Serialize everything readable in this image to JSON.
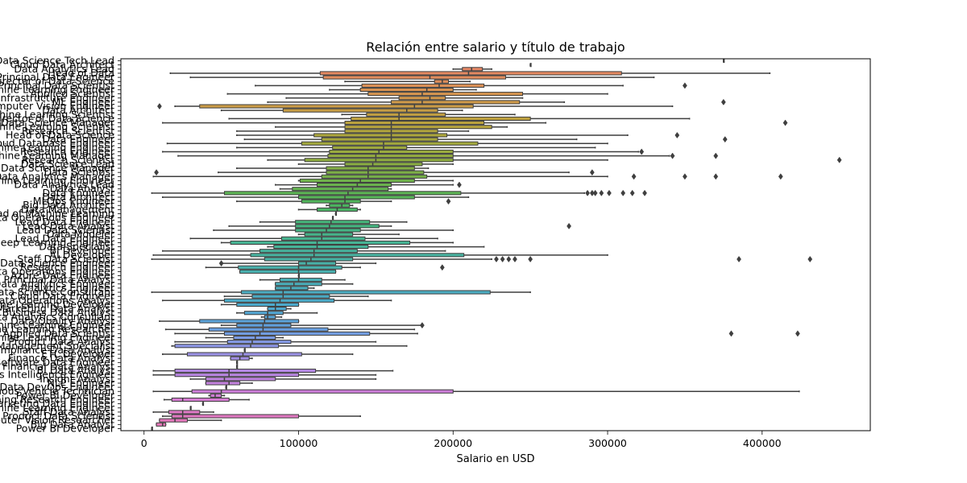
{
  "chart_data": {
    "type": "box",
    "title": "Relación entre salario y título de trabajo",
    "xlabel": "Salario en USD",
    "ylabel": "",
    "xlim": [
      -15000,
      470000
    ],
    "xticks": [
      0,
      100000,
      200000,
      300000,
      400000
    ],
    "xtick_labels": [
      "0",
      "100000",
      "200000",
      "300000",
      "400000"
    ],
    "grid": false,
    "categories": [
      {
        "name": "Data Science Tech Lead",
        "min": 375000,
        "q1": 375000,
        "med": 375000,
        "q3": 375000,
        "max": 375000,
        "out": []
      },
      {
        "name": "Cloud Data Architect",
        "min": 250000,
        "q1": 250000,
        "med": 250000,
        "q3": 250000,
        "max": 250000,
        "out": []
      },
      {
        "name": "Data Analytics Lead",
        "min": 200000,
        "q1": 206000,
        "med": 212000,
        "q3": 219000,
        "max": 225000,
        "out": []
      },
      {
        "name": "Head of Data",
        "min": 17000,
        "q1": 114000,
        "med": 210000,
        "q3": 309000,
        "max": 405000,
        "out": []
      },
      {
        "name": "Principal Data Engineer",
        "min": 30000,
        "q1": 116000,
        "med": 185000,
        "q3": 234000,
        "max": 330000,
        "out": []
      },
      {
        "name": "Director of Data Science",
        "min": 130000,
        "q1": 188000,
        "med": 193000,
        "q3": 197000,
        "max": 211000,
        "out": []
      },
      {
        "name": "Principal Data Scientist",
        "min": 72000,
        "q1": 141000,
        "med": 191000,
        "q3": 220000,
        "max": 310000,
        "out": [
          350000
        ]
      },
      {
        "name": "Machine Learning Engineer",
        "min": 120000,
        "q1": 140000,
        "med": 183000,
        "q3": 200000,
        "max": 215000,
        "out": []
      },
      {
        "name": "Applied Scientist",
        "min": 54000,
        "q1": 145000,
        "med": 180000,
        "q3": 245000,
        "max": 300000,
        "out": []
      },
      {
        "name": "Data Infrastructure Engineer",
        "min": 92000,
        "q1": 165000,
        "med": 185000,
        "q3": 195000,
        "max": 245000,
        "out": []
      },
      {
        "name": "ML Engineer",
        "min": 80000,
        "q1": 160000,
        "med": 180000,
        "q3": 243000,
        "max": 272000,
        "out": [
          375000
        ]
      },
      {
        "name": "Computer Vision Engineer",
        "min": 20000,
        "q1": 36000,
        "med": 175000,
        "q3": 213000,
        "max": 342000,
        "out": [
          10000
        ]
      },
      {
        "name": "Data Architect",
        "min": 50000,
        "q1": 90000,
        "med": 170000,
        "q3": 190000,
        "max": 206000,
        "out": []
      },
      {
        "name": "Machine Learning Scientist",
        "min": 128000,
        "q1": 144000,
        "med": 165000,
        "q3": 195000,
        "max": 240000,
        "out": []
      },
      {
        "name": "Director of Data Science",
        "min": 55000,
        "q1": 134000,
        "med": 165000,
        "q3": 250000,
        "max": 353000,
        "out": []
      },
      {
        "name": "Data Science Manager",
        "min": 12000,
        "q1": 130000,
        "med": 160000,
        "q3": 220000,
        "max": 260000,
        "out": [
          415000
        ]
      },
      {
        "name": "Machine Learning Scientist",
        "min": 85000,
        "q1": 130000,
        "med": 160000,
        "q3": 225000,
        "max": 235000,
        "out": []
      },
      {
        "name": "Research Scientist",
        "min": 60000,
        "q1": 130000,
        "med": 160000,
        "q3": 190000,
        "max": 210000,
        "out": []
      },
      {
        "name": "Head of Data Science",
        "min": 60000,
        "q1": 110000,
        "med": 160000,
        "q3": 196000,
        "max": 313000,
        "out": [
          345000
        ]
      },
      {
        "name": "Data Engineer",
        "min": 65000,
        "q1": 115000,
        "med": 160000,
        "q3": 190000,
        "max": 280000,
        "out": [
          376000
        ]
      },
      {
        "name": "Cloud Database Engineer",
        "min": 15000,
        "q1": 102000,
        "med": 155000,
        "q3": 216000,
        "max": 300000,
        "out": []
      },
      {
        "name": "Machine Learning Engineer",
        "min": 60000,
        "q1": 122000,
        "med": 155000,
        "q3": 170000,
        "max": 292000,
        "out": []
      },
      {
        "name": "Research Engineer",
        "min": 12000,
        "q1": 120000,
        "med": 152000,
        "q3": 200000,
        "max": 320000,
        "out": [
          322000
        ]
      },
      {
        "name": "Machine Learning Manager",
        "min": 22000,
        "q1": 119000,
        "med": 150000,
        "q3": 200000,
        "max": 340000,
        "out": [
          342000,
          370000
        ]
      },
      {
        "name": "Research Scientist",
        "min": 80000,
        "q1": 104000,
        "med": 150000,
        "q3": 200000,
        "max": 300000,
        "out": [
          450000
        ]
      },
      {
        "name": "Data Science Lead",
        "min": 100000,
        "q1": 130000,
        "med": 148000,
        "q3": 180000,
        "max": 200000,
        "out": []
      },
      {
        "name": "Data Science Manager",
        "min": 60000,
        "q1": 118000,
        "med": 145000,
        "q3": 175000,
        "max": 184000,
        "out": []
      },
      {
        "name": "Data Scientist",
        "min": 48000,
        "q1": 118000,
        "med": 145000,
        "q3": 181000,
        "max": 275000,
        "out": [
          8000,
          290000
        ]
      },
      {
        "name": "Data Analytics Manager",
        "min": 6000,
        "q1": 115000,
        "med": 145000,
        "q3": 183000,
        "max": 300000,
        "out": [
          317000,
          350000,
          370000,
          412000
        ]
      },
      {
        "name": "Machine Learning Engineer",
        "min": 100000,
        "q1": 101000,
        "med": 140000,
        "q3": 175000,
        "max": 200000,
        "out": []
      },
      {
        "name": "Data Analytics Lead",
        "min": 85000,
        "q1": 112000,
        "med": 138000,
        "q3": 160000,
        "max": 200000,
        "out": [
          204000
        ]
      },
      {
        "name": "Data Analyst",
        "min": 88000,
        "q1": 96000,
        "med": 135000,
        "q3": 158000,
        "max": 160000,
        "out": []
      },
      {
        "name": "Data Engineer",
        "min": 5000,
        "q1": 52000,
        "med": 132000,
        "q3": 205000,
        "max": 285000,
        "out": [
          287000,
          290000,
          292000,
          296000,
          301000,
          310000,
          316000,
          324000
        ]
      },
      {
        "name": "Data Architect",
        "min": 12000,
        "q1": 100000,
        "med": 130000,
        "q3": 175000,
        "max": 210000,
        "out": []
      },
      {
        "name": "MLOps Engineer",
        "min": 60000,
        "q1": 102000,
        "med": 130000,
        "q3": 140000,
        "max": 160000,
        "out": [
          197000
        ]
      },
      {
        "name": "Big Data Architect",
        "min": 118000,
        "q1": 120000,
        "med": 128000,
        "q3": 133000,
        "max": 135000,
        "out": []
      },
      {
        "name": "Data Management",
        "min": 100000,
        "q1": 112000,
        "med": 125000,
        "q3": 138000,
        "max": 140000,
        "out": []
      },
      {
        "name": "Head of Machine Learning",
        "min": 124000,
        "q1": 124000,
        "med": 124000,
        "q3": 124000,
        "max": 124000,
        "out": []
      },
      {
        "name": "Data Operations Engineer",
        "min": 122000,
        "q1": 122000,
        "med": 122000,
        "q3": 122000,
        "max": 122000,
        "out": []
      },
      {
        "name": "Lead Data Engineer",
        "min": 75000,
        "q1": 98000,
        "med": 121000,
        "q3": 146000,
        "max": 170000,
        "out": []
      },
      {
        "name": "Lead Data Analyst",
        "min": 55000,
        "q1": 98000,
        "med": 120000,
        "q3": 152000,
        "max": 160000,
        "out": [
          275000
        ]
      },
      {
        "name": "Lead Data Scientist",
        "min": 45000,
        "q1": 98000,
        "med": 118000,
        "q3": 140000,
        "max": 200000,
        "out": []
      },
      {
        "name": "Data Modeler",
        "min": 100000,
        "q1": 104000,
        "med": 115000,
        "q3": 135000,
        "max": 165000,
        "out": []
      },
      {
        "name": "Lead Data Engineer",
        "min": 30000,
        "q1": 89000,
        "med": 115000,
        "q3": 143000,
        "max": 190000,
        "out": []
      },
      {
        "name": "Deep Learning Engineer",
        "min": 50000,
        "q1": 56000,
        "med": 112000,
        "q3": 172000,
        "max": 200000,
        "out": []
      },
      {
        "name": "Data Specialist",
        "min": 80000,
        "q1": 84000,
        "med": 112000,
        "q3": 145000,
        "max": 220000,
        "out": []
      },
      {
        "name": "BI Developer",
        "min": 12000,
        "q1": 75000,
        "med": 110000,
        "q3": 138000,
        "max": 195000,
        "out": []
      },
      {
        "name": "AI Developer",
        "min": 6000,
        "q1": 69000,
        "med": 110000,
        "q3": 207000,
        "max": 300000,
        "out": []
      },
      {
        "name": "Staff Data Scientist",
        "min": 5000,
        "q1": 78000,
        "med": 108000,
        "q3": 135000,
        "max": 225000,
        "out": [
          228000,
          232000,
          240000,
          236000,
          250000,
          385000,
          431000
        ]
      },
      {
        "name": "Data Science Engineer",
        "min": 50000,
        "q1": 100000,
        "med": 105000,
        "q3": 124000,
        "max": 150000,
        "out": [
          50000
        ]
      },
      {
        "name": "Research Engineer",
        "min": 40000,
        "q1": 61000,
        "med": 100000,
        "q3": 128000,
        "max": 140000,
        "out": [
          193000
        ]
      },
      {
        "name": "Data Operations Engineer",
        "min": 62000,
        "q1": 62000,
        "med": 100000,
        "q3": 124000,
        "max": 124000,
        "out": []
      },
      {
        "name": "Azure Data Engineer",
        "min": 100000,
        "q1": 100000,
        "med": 100000,
        "q3": 100000,
        "max": 100000,
        "out": []
      },
      {
        "name": "Principal Data Analyst",
        "min": 75000,
        "q1": 88000,
        "med": 100000,
        "q3": 115000,
        "max": 130000,
        "out": []
      },
      {
        "name": "Data Analytics Engineer",
        "min": 85000,
        "q1": 85000,
        "med": 97000,
        "q3": 115000,
        "max": 135000,
        "out": []
      },
      {
        "name": "Analytics Engineer",
        "min": 85000,
        "q1": 85000,
        "med": 95000,
        "q3": 106000,
        "max": 110000,
        "out": []
      },
      {
        "name": "Data Science Consultant",
        "min": 5000,
        "q1": 63000,
        "med": 90000,
        "q3": 224000,
        "max": 250000,
        "out": []
      },
      {
        "name": "Cloud Data Engineer",
        "min": 52000,
        "q1": 70000,
        "med": 90000,
        "q3": 120000,
        "max": 145000,
        "out": []
      },
      {
        "name": "Data Operations Analyst",
        "min": 12000,
        "q1": 52000,
        "med": 88000,
        "q3": 123000,
        "max": 160000,
        "out": []
      },
      {
        "name": "Machine Learning Developer",
        "min": 50000,
        "q1": 60000,
        "med": 85000,
        "q3": 100000,
        "max": 100000,
        "out": []
      },
      {
        "name": "Marketing Data Analyst",
        "min": 80000,
        "q1": 80000,
        "med": 85000,
        "q3": 92000,
        "max": 95000,
        "out": []
      },
      {
        "name": "Business Data Analyst",
        "min": 60000,
        "q1": 65000,
        "med": 80000,
        "q3": 90000,
        "max": 112000,
        "out": []
      },
      {
        "name": "Data Analytics Consultant",
        "min": 76000,
        "q1": 78000,
        "med": 80000,
        "q3": 85000,
        "max": 89000,
        "out": []
      },
      {
        "name": "Data Quality Analyst",
        "min": 10000,
        "q1": 36000,
        "med": 78000,
        "q3": 100000,
        "max": 100000,
        "out": []
      },
      {
        "name": "Lead Machine Learning Engineer",
        "min": 50000,
        "q1": 60000,
        "med": 77000,
        "q3": 95000,
        "max": 180000,
        "out": [
          180000
        ]
      },
      {
        "name": "Machine Learning Researcher",
        "min": 14000,
        "q1": 42000,
        "med": 77000,
        "q3": 119000,
        "max": 175000,
        "out": []
      },
      {
        "name": "Applied Data Scientist",
        "min": 20000,
        "q1": 52000,
        "med": 75000,
        "q3": 146000,
        "max": 177000,
        "out": [
          380000,
          423000
        ]
      },
      {
        "name": "Applied Machine Learning Engineer",
        "min": 40000,
        "q1": 58000,
        "med": 72000,
        "q3": 85000,
        "max": 90000,
        "out": []
      },
      {
        "name": "Product Data Analyst",
        "min": 20000,
        "q1": 54000,
        "med": 70000,
        "q3": 95000,
        "max": 150000,
        "out": []
      },
      {
        "name": "Data Management Specialist",
        "min": 18000,
        "q1": 20000,
        "med": 69000,
        "q3": 87000,
        "max": 170000,
        "out": []
      },
      {
        "name": "Compliance Data Analyst",
        "min": 65000,
        "q1": 65000,
        "med": 65000,
        "q3": 65000,
        "max": 65000,
        "out": []
      },
      {
        "name": "ETL Developer",
        "min": 12000,
        "q1": 28000,
        "med": 64000,
        "q3": 102000,
        "max": 135000,
        "out": []
      },
      {
        "name": "Finance Data Analyst",
        "min": 56000,
        "q1": 56000,
        "med": 62000,
        "q3": 68000,
        "max": 70000,
        "out": []
      },
      {
        "name": "Software Data Engineer",
        "min": 60000,
        "q1": 60000,
        "med": 60000,
        "q3": 60000,
        "max": 60000,
        "out": []
      },
      {
        "name": "Financial Data Analyst",
        "min": 60000,
        "q1": 60000,
        "med": 60000,
        "q3": 60000,
        "max": 60000,
        "out": []
      },
      {
        "name": "BI Data Analyst",
        "min": 6000,
        "q1": 20000,
        "med": 55000,
        "q3": 111000,
        "max": 161000,
        "out": []
      },
      {
        "name": "Business Intelligence Engineer",
        "min": 6000,
        "q1": 20000,
        "med": 55000,
        "q3": 100000,
        "max": 150000,
        "out": []
      },
      {
        "name": "Insight Analyst",
        "min": 30000,
        "q1": 40000,
        "med": 52000,
        "q3": 85000,
        "max": 150000,
        "out": []
      },
      {
        "name": "NLP Engineer",
        "min": 40000,
        "q1": 40000,
        "med": 55000,
        "q3": 62000,
        "max": 70000,
        "out": []
      },
      {
        "name": "Data DevOps Engineer",
        "min": 53000,
        "q1": 53000,
        "med": 53000,
        "q3": 53000,
        "max": 53000,
        "out": []
      },
      {
        "name": "Autonomous Vehicle Technician",
        "min": 6000,
        "q1": 31000,
        "med": 50000,
        "q3": 200000,
        "max": 424000,
        "out": []
      },
      {
        "name": "Power BI Developer",
        "min": 42000,
        "q1": 43000,
        "med": 46000,
        "q3": 50000,
        "max": 52000,
        "out": []
      },
      {
        "name": "Machine Learning Research Engineer",
        "min": 13000,
        "q1": 18000,
        "med": 25000,
        "q3": 55000,
        "max": 68000,
        "out": []
      },
      {
        "name": "Marketing Data Engineer",
        "min": 38000,
        "q1": 38000,
        "med": 38000,
        "q3": 38000,
        "max": 38000,
        "out": []
      },
      {
        "name": "Principal Machine Learning Engineer",
        "min": 30000,
        "q1": 30000,
        "med": 30000,
        "q3": 30000,
        "max": 30000,
        "out": []
      },
      {
        "name": "Staff Data Analyst",
        "min": 6000,
        "q1": 16000,
        "med": 25000,
        "q3": 36000,
        "max": 45000,
        "out": []
      },
      {
        "name": "Product Data Scientist",
        "min": 12000,
        "q1": 18000,
        "med": 25000,
        "q3": 100000,
        "max": 140000,
        "out": []
      },
      {
        "name": "Computer Vision Researcher",
        "min": 10000,
        "q1": 10000,
        "med": 20000,
        "q3": 28000,
        "max": 50000,
        "out": []
      },
      {
        "name": "Big Data Analyst",
        "min": 8000,
        "q1": 8000,
        "med": 12000,
        "q3": 14000,
        "max": 14000,
        "out": []
      },
      {
        "name": "Power BI Developer",
        "min": 5000,
        "q1": 5000,
        "med": 5000,
        "q3": 5000,
        "max": 5000,
        "out": []
      }
    ],
    "palette": [
      "#e8816b",
      "#df8e5a",
      "#cf9a4a",
      "#bba23e",
      "#a4a83d",
      "#8bad42",
      "#6cb24d",
      "#4db65d",
      "#45b57e",
      "#47b396",
      "#49b1aa",
      "#4aaebb",
      "#4ca9cc",
      "#62a1de",
      "#8f96e6",
      "#b08ae4",
      "#c97fdb",
      "#dc79c9",
      "#e777b4"
    ]
  }
}
